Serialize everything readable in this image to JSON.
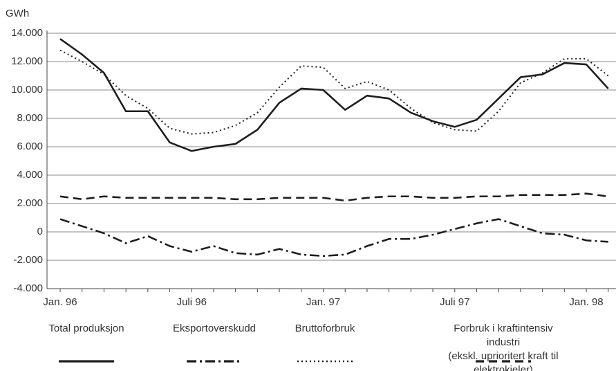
{
  "chart_data": {
    "type": "line",
    "y_label": "GWh",
    "categories": [
      "Jan. 96",
      null,
      null,
      null,
      null,
      null,
      "Juli 96",
      null,
      null,
      null,
      null,
      null,
      "Jan. 97",
      null,
      null,
      null,
      null,
      null,
      "Juli 97",
      null,
      null,
      null,
      null,
      null,
      "Jan. 98",
      null
    ],
    "series": [
      {
        "name": "Total produksjon",
        "color": "#1e1e1e",
        "style": "solid",
        "values": [
          13600,
          12500,
          11200,
          8500,
          8500,
          6300,
          5700,
          6000,
          6200,
          7200,
          9100,
          10100,
          10000,
          8600,
          9600,
          9400,
          8400,
          7800,
          7400,
          7900,
          9400,
          10900,
          11100,
          11900,
          11800,
          10100
        ]
      },
      {
        "name": "Eksportoverskudd",
        "color": "#1e1e1e",
        "style": "dashdot",
        "values": [
          900,
          400,
          -100,
          -800,
          -300,
          -1000,
          -1400,
          -1000,
          -1500,
          -1600,
          -1200,
          -1600,
          -1700,
          -1600,
          -1000,
          -500,
          -500,
          -200,
          200,
          600,
          900,
          400,
          -100,
          -200,
          -600,
          -700
        ]
      },
      {
        "name": "Bruttoforbruk",
        "color": "#1e1e1e",
        "style": "dotted",
        "values": [
          12800,
          12000,
          11100,
          9600,
          8700,
          7300,
          6900,
          7000,
          7500,
          8400,
          10200,
          11700,
          11600,
          10100,
          10600,
          10000,
          8700,
          7700,
          7200,
          7100,
          8500,
          10500,
          11200,
          12200,
          12200,
          11000
        ]
      },
      {
        "name": "Forbruk i kraftintensiv industri\n(ekskl. uprioritert kraft til elektrokjeler)",
        "color": "#1e1e1e",
        "style": "dashed",
        "values": [
          2500,
          2300,
          2500,
          2400,
          2400,
          2400,
          2400,
          2400,
          2300,
          2300,
          2400,
          2400,
          2400,
          2200,
          2400,
          2500,
          2500,
          2400,
          2400,
          2500,
          2500,
          2600,
          2600,
          2600,
          2700,
          2500
        ]
      }
    ],
    "ylim": [
      -4000,
      14000
    ],
    "yticks": [
      {
        "value": -4000,
        "label": "-4.000"
      },
      {
        "value": -2000,
        "label": "-2.000"
      },
      0,
      {
        "value": 2000,
        "label": "2.000"
      },
      {
        "value": 4000,
        "label": "4.000"
      },
      {
        "value": 6000,
        "label": "6.000"
      },
      {
        "value": 8000,
        "label": "8.000"
      },
      {
        "value": 10000,
        "label": "10.000"
      },
      {
        "value": 12000,
        "label": "12.000"
      },
      {
        "value": 14000,
        "label": "14.000"
      }
    ],
    "grid": true,
    "legend": "bottom"
  }
}
